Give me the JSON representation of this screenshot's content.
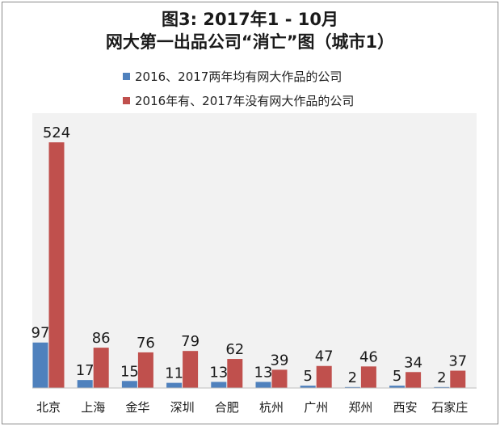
{
  "chart_data": {
    "type": "bar",
    "title": "图3: 2017年1 - 10月",
    "subtitle": "网大第一出品公司“消亡”图（城市1）",
    "categories": [
      "北京",
      "上海",
      "金华",
      "深圳",
      "合肥",
      "杭州",
      "广州",
      "郑州",
      "西安",
      "石家庄"
    ],
    "series": [
      {
        "name": "2016、2017两年均有网大作品的公司",
        "color": "#4f81bd",
        "values": [
          97,
          17,
          15,
          11,
          13,
          13,
          5,
          2,
          5,
          2
        ]
      },
      {
        "name": "2016年有、2017年没有网大作品的公司",
        "color": "#c0504d",
        "values": [
          524,
          86,
          76,
          79,
          62,
          39,
          47,
          46,
          34,
          37
        ]
      }
    ],
    "ylim": [
      0,
      540
    ],
    "grid": false,
    "legend_position": "top-left",
    "plot_background": "#f2f2f2"
  }
}
